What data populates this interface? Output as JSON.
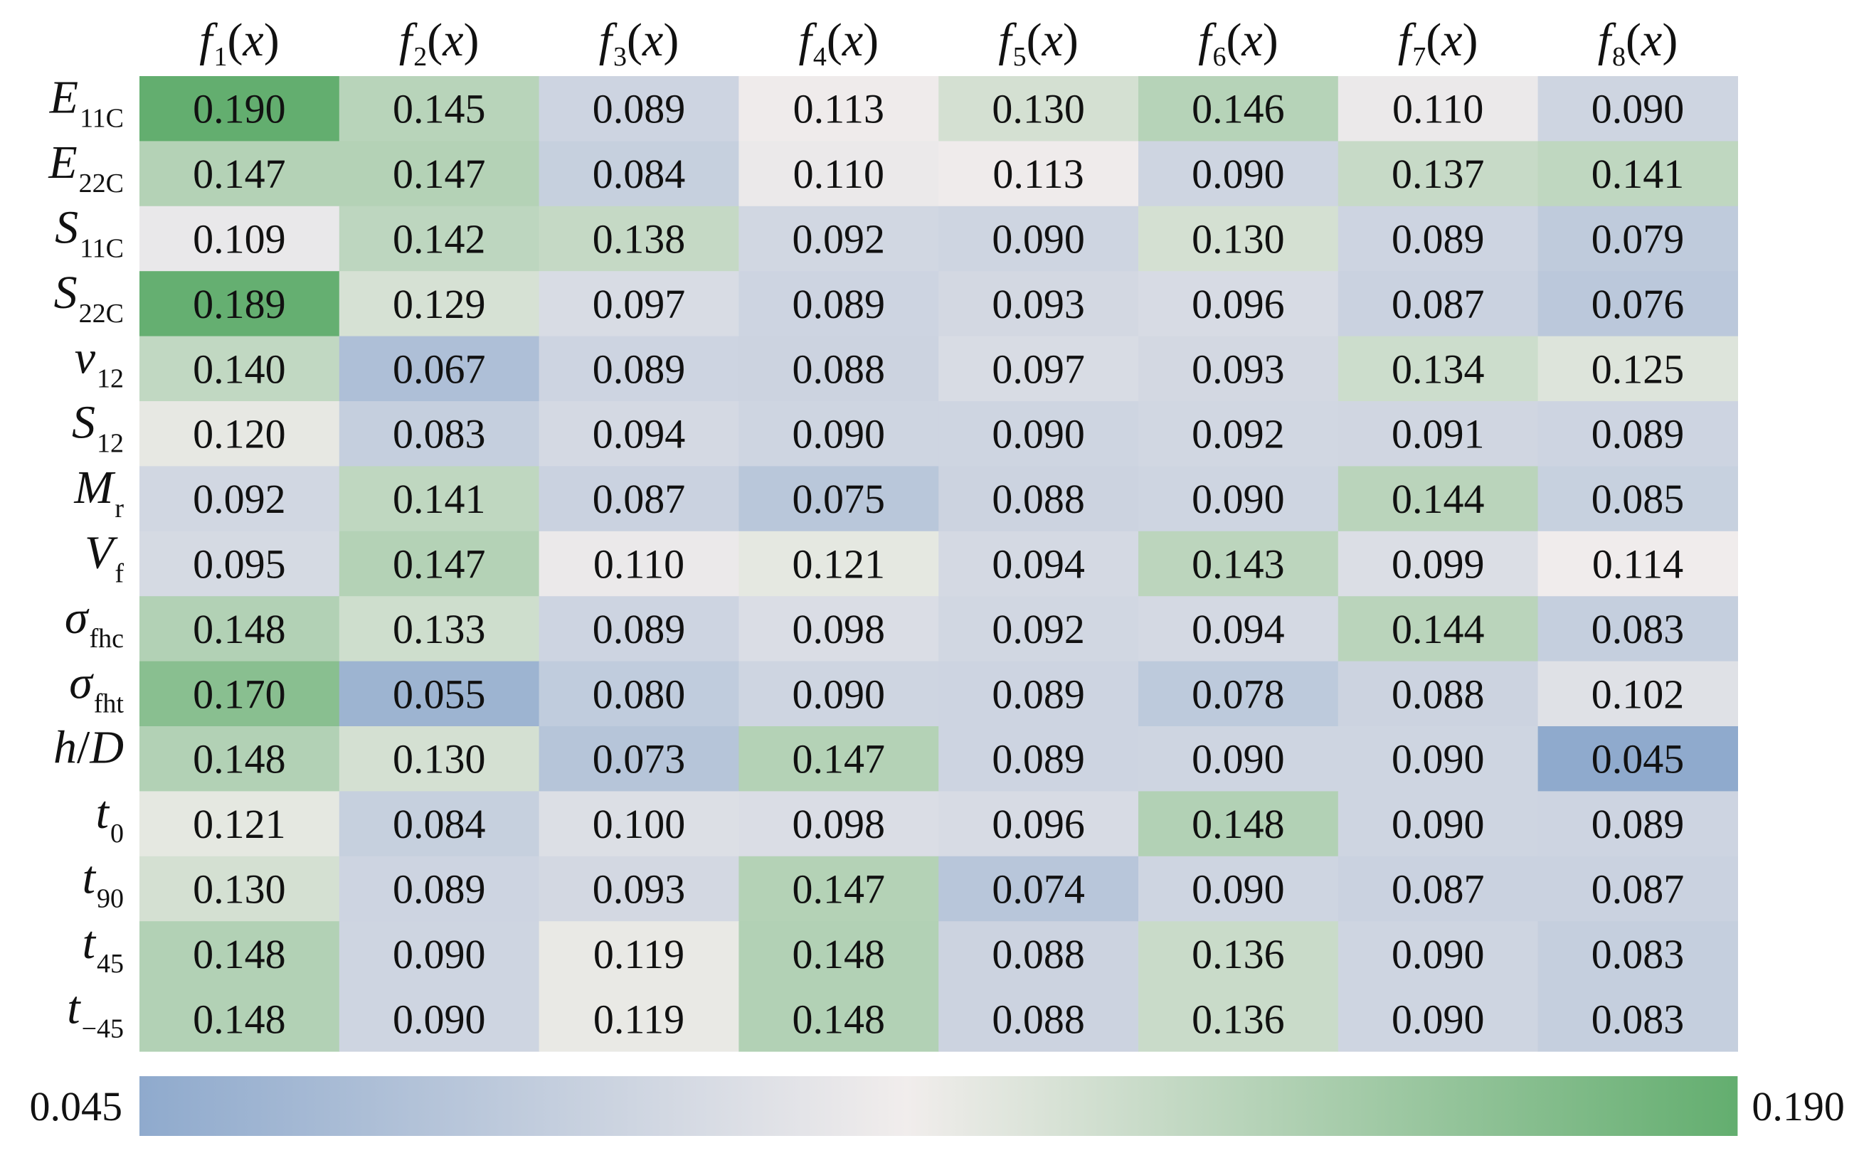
{
  "chart_data": {
    "type": "heatmap",
    "columns": [
      {
        "base": "f",
        "sub": "1",
        "tail": "(x)"
      },
      {
        "base": "f",
        "sub": "2",
        "tail": "(x)"
      },
      {
        "base": "f",
        "sub": "3",
        "tail": "(x)"
      },
      {
        "base": "f",
        "sub": "4",
        "tail": "(x)"
      },
      {
        "base": "f",
        "sub": "5",
        "tail": "(x)"
      },
      {
        "base": "f",
        "sub": "6",
        "tail": "(x)"
      },
      {
        "base": "f",
        "sub": "7",
        "tail": "(x)"
      },
      {
        "base": "f",
        "sub": "8",
        "tail": "(x)"
      }
    ],
    "rows": [
      {
        "base": "E",
        "sub": "11C",
        "tail": ""
      },
      {
        "base": "E",
        "sub": "22C",
        "tail": ""
      },
      {
        "base": "S",
        "sub": "11C",
        "tail": ""
      },
      {
        "base": "S",
        "sub": "22C",
        "tail": ""
      },
      {
        "base": "v",
        "sub": "12",
        "tail": ""
      },
      {
        "base": "S",
        "sub": "12",
        "tail": ""
      },
      {
        "base": "M",
        "sub": "r",
        "tail": ""
      },
      {
        "base": "V",
        "sub": "f",
        "tail": ""
      },
      {
        "base": "σ",
        "sub": "fhc",
        "tail": ""
      },
      {
        "base": "σ",
        "sub": "fht",
        "tail": ""
      },
      {
        "base": "h",
        "sub": "",
        "tail": "/D"
      },
      {
        "base": "t",
        "sub": "0",
        "tail": ""
      },
      {
        "base": "t",
        "sub": "90",
        "tail": ""
      },
      {
        "base": "t",
        "sub": "45",
        "tail": ""
      },
      {
        "base": "t",
        "sub": "−45",
        "tail": ""
      }
    ],
    "values": [
      [
        "0.190",
        "0.145",
        "0.089",
        "0.113",
        "0.130",
        "0.146",
        "0.110",
        "0.090"
      ],
      [
        "0.147",
        "0.147",
        "0.084",
        "0.110",
        "0.113",
        "0.090",
        "0.137",
        "0.141"
      ],
      [
        "0.109",
        "0.142",
        "0.138",
        "0.092",
        "0.090",
        "0.130",
        "0.089",
        "0.079"
      ],
      [
        "0.189",
        "0.129",
        "0.097",
        "0.089",
        "0.093",
        "0.096",
        "0.087",
        "0.076"
      ],
      [
        "0.140",
        "0.067",
        "0.089",
        "0.088",
        "0.097",
        "0.093",
        "0.134",
        "0.125"
      ],
      [
        "0.120",
        "0.083",
        "0.094",
        "0.090",
        "0.090",
        "0.092",
        "0.091",
        "0.089"
      ],
      [
        "0.092",
        "0.141",
        "0.087",
        "0.075",
        "0.088",
        "0.090",
        "0.144",
        "0.085"
      ],
      [
        "0.095",
        "0.147",
        "0.110",
        "0.121",
        "0.094",
        "0.143",
        "0.099",
        "0.114"
      ],
      [
        "0.148",
        "0.133",
        "0.089",
        "0.098",
        "0.092",
        "0.094",
        "0.144",
        "0.083"
      ],
      [
        "0.170",
        "0.055",
        "0.080",
        "0.090",
        "0.089",
        "0.078",
        "0.088",
        "0.102"
      ],
      [
        "0.148",
        "0.130",
        "0.073",
        "0.147",
        "0.089",
        "0.090",
        "0.090",
        "0.045"
      ],
      [
        "0.121",
        "0.084",
        "0.100",
        "0.098",
        "0.096",
        "0.148",
        "0.090",
        "0.089"
      ],
      [
        "0.130",
        "0.089",
        "0.093",
        "0.147",
        "0.074",
        "0.090",
        "0.087",
        "0.087"
      ],
      [
        "0.148",
        "0.090",
        "0.119",
        "0.148",
        "0.088",
        "0.136",
        "0.090",
        "0.083"
      ],
      [
        "0.148",
        "0.090",
        "0.119",
        "0.148",
        "0.088",
        "0.136",
        "0.090",
        "0.083"
      ]
    ],
    "colorbar": {
      "min_label": "0.045",
      "max_label": "0.190",
      "min": 0.045,
      "max": 0.19,
      "orientation": "horizontal",
      "placement": "bottom"
    },
    "colors": {
      "low": "#8FAACD",
      "mid": "#F1EDEC",
      "high": "#63AE6F",
      "text": "#111111",
      "background": "#ffffff"
    }
  }
}
